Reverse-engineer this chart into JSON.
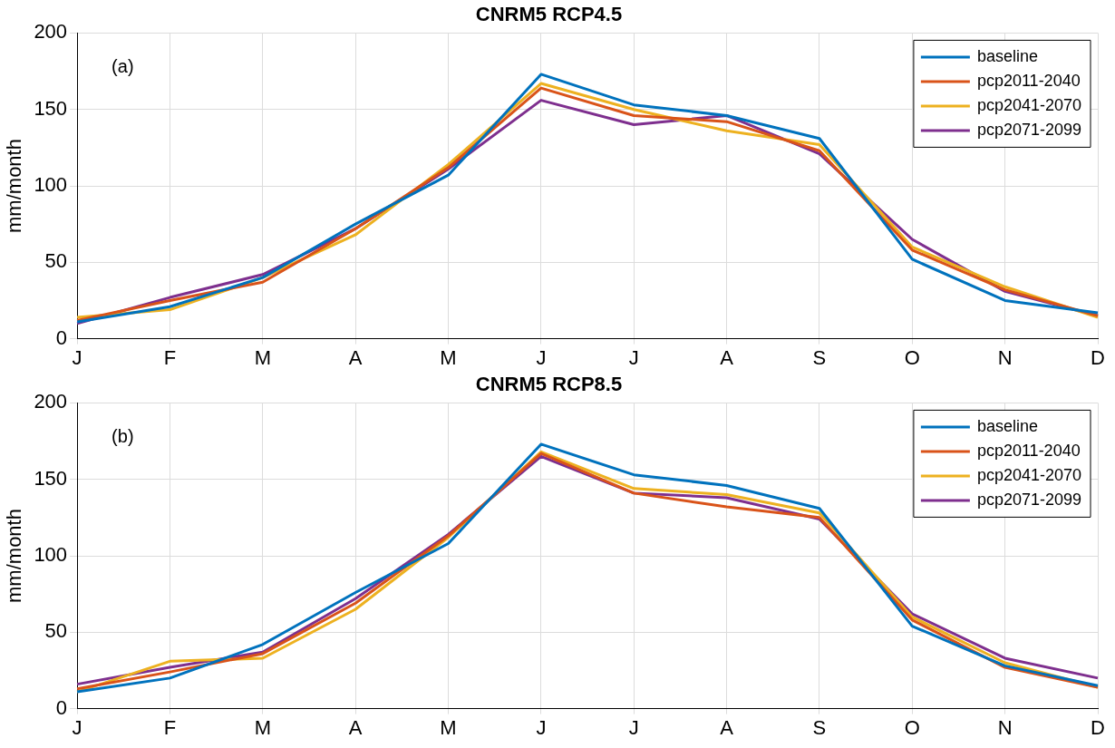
{
  "chart_data": [
    {
      "type": "line",
      "title": "CNRM5 RCP4.5",
      "ylabel": "mm/month",
      "annotations": [
        "(a)"
      ],
      "categories": [
        "J",
        "F",
        "M",
        "A",
        "M",
        "J",
        "J",
        "A",
        "S",
        "O",
        "N",
        "D"
      ],
      "ylim": [
        0,
        200
      ],
      "yticks": [
        0,
        50,
        100,
        150,
        200
      ],
      "grid": true,
      "legend": "top right",
      "series": [
        {
          "name": "baseline",
          "color": "#0072bd",
          "values": [
            11,
            21,
            40,
            75,
            107,
            173,
            153,
            146,
            131,
            52,
            25,
            17
          ]
        },
        {
          "name": "pcp2011-2040",
          "color": "#d95319",
          "values": [
            12,
            25,
            37,
            72,
            112,
            164,
            146,
            142,
            123,
            58,
            32,
            15
          ]
        },
        {
          "name": "pcp2041-2070",
          "color": "#edb120",
          "values": [
            14,
            19,
            40,
            68,
            114,
            167,
            150,
            136,
            127,
            60,
            34,
            14
          ]
        },
        {
          "name": "pcp2071-2099",
          "color": "#7e2f8e",
          "values": [
            10,
            27,
            42,
            72,
            111,
            156,
            140,
            146,
            121,
            65,
            31,
            15
          ]
        }
      ]
    },
    {
      "type": "line",
      "title": "CNRM5 RCP8.5",
      "ylabel": "mm/month",
      "annotations": [
        "(b)"
      ],
      "categories": [
        "J",
        "F",
        "M",
        "A",
        "M",
        "J",
        "J",
        "A",
        "S",
        "O",
        "N",
        "D"
      ],
      "ylim": [
        0,
        200
      ],
      "yticks": [
        0,
        50,
        100,
        150,
        200
      ],
      "grid": true,
      "legend": "top right",
      "series": [
        {
          "name": "baseline",
          "color": "#0072bd",
          "values": [
            11,
            20,
            42,
            76,
            108,
            173,
            153,
            146,
            131,
            54,
            28,
            15
          ]
        },
        {
          "name": "pcp2011-2040",
          "color": "#d95319",
          "values": [
            13,
            24,
            36,
            69,
            113,
            167,
            141,
            132,
            125,
            58,
            27,
            14
          ]
        },
        {
          "name": "pcp2041-2070",
          "color": "#edb120",
          "values": [
            11,
            31,
            33,
            65,
            112,
            168,
            144,
            140,
            128,
            60,
            30,
            14
          ]
        },
        {
          "name": "pcp2071-2099",
          "color": "#7e2f8e",
          "values": [
            16,
            27,
            37,
            72,
            114,
            165,
            141,
            138,
            124,
            62,
            33,
            20
          ]
        }
      ]
    }
  ]
}
